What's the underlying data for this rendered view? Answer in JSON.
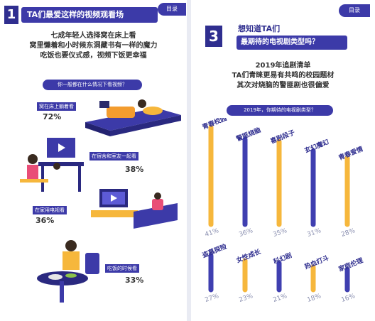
{
  "toc_label": "目录",
  "left": {
    "number": "1",
    "title": "TA们最爱这样的视频观看场",
    "intro": [
      "七成年轻人选择窝在床上看",
      "窝里懒着和小时候东洞藏书有一样的魔力",
      "吃饭也要仪式感，视频下饭更幸福"
    ],
    "question": "你一般都在什么情况下看视频？",
    "scenes": [
      {
        "label": "窝在床上躺着看",
        "value": "72%"
      },
      {
        "label": "在宿舍和室友一起看",
        "value": "38%"
      },
      {
        "label": "在家用电视看",
        "value": "36%"
      },
      {
        "label": "吃饭的时候看",
        "value": "33%"
      }
    ]
  },
  "right": {
    "number": "3",
    "title_line1": "想知道TA们",
    "title_line2": "最期待的电视剧类型吗？",
    "intro": [
      "2019年追剧清单",
      "TA们青睐更易有共鸣的校园题材",
      "其次对烧脑的警匪剧也很偏爱"
    ],
    "question": "2019年，你期待的电视剧类型？"
  },
  "chart_data": {
    "type": "bar",
    "title": "2019年，你期待的电视剧类型？",
    "categories": [
      "青春校园",
      "警匪烧脑",
      "喜剧段子",
      "玄幻魔幻",
      "青春爱情",
      "盗墓探险",
      "女性成长",
      "科幻剧",
      "热血打斗",
      "家庭伦理"
    ],
    "values": [
      41,
      36,
      35,
      31,
      28,
      27,
      23,
      21,
      18,
      16
    ],
    "value_labels": [
      "41%",
      "36%",
      "35%",
      "31%",
      "28%",
      "27%",
      "23%",
      "21%",
      "18%",
      "16%"
    ],
    "colors": [
      "#f6b73c",
      "#3f3fb0",
      "#f6b73c",
      "#3f3fb0",
      "#f6b73c",
      "#3f3fb0",
      "#f6b73c",
      "#3f3fb0",
      "#f6b73c",
      "#3f3fb0"
    ],
    "rows": [
      [
        0,
        1,
        2,
        3,
        4
      ],
      [
        5,
        6,
        7,
        8,
        9
      ]
    ],
    "ylim": [
      0,
      45
    ]
  }
}
